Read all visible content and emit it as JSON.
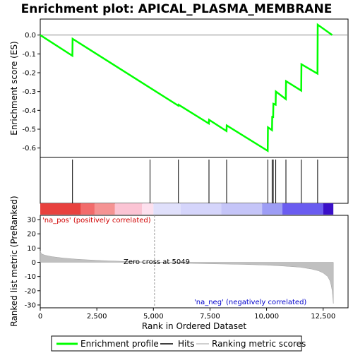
{
  "chart_data": {
    "type": "line",
    "title": "Enrichment plot: APICAL_PLASMA_MEMBRANE",
    "es_panel": {
      "ylabel": "Enrichment score (ES)",
      "ylim": [
        -0.65,
        0.085
      ],
      "yticks": [
        0.0,
        -0.1,
        -0.2,
        -0.3,
        -0.4,
        -0.5,
        -0.6
      ],
      "ytick_labels": [
        "0.0",
        "-0.1",
        "-0.2",
        "-0.3",
        "-0.4",
        "-0.5",
        "-0.6"
      ],
      "series": [
        {
          "name": "Enrichment profile",
          "color": "#00ff00",
          "x": [
            0,
            1420,
            1430,
            6100,
            6110,
            7450,
            7460,
            8230,
            8240,
            10050,
            10060,
            10240,
            10250,
            10290,
            10300,
            10400,
            10410,
            10850,
            10860,
            11530,
            11540,
            12250,
            12260,
            12900
          ],
          "y": [
            0.0,
            -0.11,
            -0.02,
            -0.375,
            -0.37,
            -0.47,
            -0.45,
            -0.51,
            -0.48,
            -0.615,
            -0.49,
            -0.505,
            -0.43,
            -0.44,
            -0.365,
            -0.37,
            -0.3,
            -0.34,
            -0.245,
            -0.295,
            -0.155,
            -0.205,
            0.055,
            0.0
          ]
        }
      ]
    },
    "hits": {
      "name": "Hits",
      "positions": [
        1425,
        4850,
        6105,
        7455,
        8235,
        10055,
        10245,
        10295,
        10405,
        10855,
        11535,
        12255
      ]
    },
    "heatmap_bar": {
      "segments": [
        {
          "x0": 0,
          "x1": 1800,
          "color": "#e8413e"
        },
        {
          "x0": 1800,
          "x1": 2400,
          "color": "#f26b6b"
        },
        {
          "x0": 2400,
          "x1": 3300,
          "color": "#f59393"
        },
        {
          "x0": 3300,
          "x1": 4500,
          "color": "#fbc4d4"
        },
        {
          "x0": 4500,
          "x1": 5000,
          "color": "#fde0ee"
        },
        {
          "x0": 5000,
          "x1": 6200,
          "color": "#e0e0fb"
        },
        {
          "x0": 6200,
          "x1": 8000,
          "color": "#d5d5fb"
        },
        {
          "x0": 8000,
          "x1": 9800,
          "color": "#c5c5f8"
        },
        {
          "x0": 9800,
          "x1": 10700,
          "color": "#9d9df5"
        },
        {
          "x0": 10700,
          "x1": 12500,
          "color": "#6a5cf0"
        },
        {
          "x0": 12500,
          "x1": 12950,
          "color": "#3a10c8"
        }
      ]
    },
    "metric_panel": {
      "ylabel": "Ranked list metric (PreRanked)",
      "xlabel": "Rank in Ordered Dataset",
      "ylim": [
        -32,
        33
      ],
      "yticks": [
        30,
        20,
        10,
        0,
        -10,
        -20,
        -30
      ],
      "ytick_labels": [
        "30",
        "20",
        "10",
        "0",
        "-10",
        "-20",
        "-30"
      ],
      "xlim": [
        0,
        13600
      ],
      "xticks": [
        0,
        2500,
        5000,
        7500,
        10000,
        12500
      ],
      "xtick_labels": [
        "0",
        "2,500",
        "5,000",
        "7,500",
        "10,000",
        "12,500"
      ],
      "fill_color": "#c0c0c0",
      "series": {
        "name": "Ranking metric scores",
        "x": [
          0,
          50,
          200,
          500,
          1000,
          1500,
          2000,
          3000,
          4000,
          5049,
          6000,
          7000,
          8000,
          9000,
          10000,
          10500,
          11000,
          11500,
          12000,
          12300,
          12500,
          12700,
          12800,
          12850,
          12900,
          12950
        ],
        "y": [
          8,
          6,
          5,
          4,
          3,
          2.3,
          1.8,
          1.0,
          0.5,
          0,
          -0.5,
          -0.9,
          -1.2,
          -1.5,
          -2.0,
          -2.4,
          -2.9,
          -3.5,
          -4.8,
          -6,
          -7.5,
          -10,
          -13,
          -16,
          -20,
          -29
        ]
      },
      "zero_cross": 5049
    },
    "annotations": {
      "pos_label": "'na_pos' (positively correlated)",
      "neg_label": "'na_neg' (negatively correlated)",
      "zero_cross_label": "Zero cross at 5049"
    },
    "legend": {
      "placement": "bottom",
      "entries": [
        {
          "label": "Enrichment profile",
          "color": "#00ff00"
        },
        {
          "label": "Hits",
          "color": "#000000"
        },
        {
          "label": "Ranking metric scores",
          "color": "#c0c0c0"
        }
      ]
    }
  }
}
